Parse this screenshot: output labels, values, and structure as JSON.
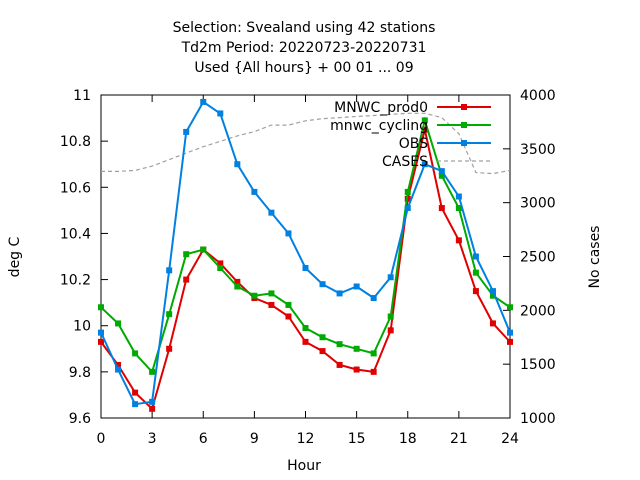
{
  "chart_data": {
    "type": "line",
    "title_lines": [
      "Selection: Svealand using    42 stations",
      "Td2m   Period: 20220723-20220731",
      "Used {All hours} + 00 01 ... 09"
    ],
    "xlabel": "Hour",
    "ylabel": "deg C",
    "y2label": "No cases",
    "xlim": [
      0,
      24
    ],
    "ylim": [
      9.6,
      11.0
    ],
    "y2lim": [
      1000,
      4000
    ],
    "xticks": [
      0,
      3,
      6,
      9,
      12,
      15,
      18,
      21,
      24
    ],
    "yticks": [
      9.6,
      9.8,
      10,
      10.2,
      10.4,
      10.6,
      10.8,
      11
    ],
    "ytick_labels": [
      "9.6",
      "9.8",
      "10",
      "10.2",
      "10.4",
      "10.6",
      "10.8",
      "11"
    ],
    "y2ticks": [
      1000,
      1500,
      2000,
      2500,
      3000,
      3500,
      4000
    ],
    "legend_position": "top-right",
    "x": [
      0,
      1,
      2,
      3,
      4,
      5,
      6,
      7,
      8,
      9,
      10,
      11,
      12,
      13,
      14,
      15,
      16,
      17,
      18,
      19,
      20,
      21,
      22,
      23,
      24
    ],
    "series": [
      {
        "name": "MNWC_prod0",
        "color": "#e00000",
        "marker": "square",
        "axis": "y1",
        "values": [
          9.93,
          9.83,
          9.71,
          9.64,
          9.9,
          10.2,
          10.33,
          10.27,
          10.19,
          10.12,
          10.09,
          10.04,
          9.93,
          9.89,
          9.83,
          9.81,
          9.8,
          9.98,
          10.55,
          10.85,
          10.51,
          10.37,
          10.15,
          10.01,
          9.93
        ]
      },
      {
        "name": "mnwc_cycling",
        "color": "#00aa00",
        "marker": "square",
        "axis": "y1",
        "values": [
          10.08,
          10.01,
          9.88,
          9.8,
          10.05,
          10.31,
          10.33,
          10.25,
          10.17,
          10.13,
          10.14,
          10.09,
          9.99,
          9.95,
          9.92,
          9.9,
          9.88,
          10.04,
          10.58,
          10.89,
          10.65,
          10.51,
          10.23,
          10.13,
          10.08
        ]
      },
      {
        "name": "OBS",
        "color": "#0080e0",
        "marker": "square",
        "axis": "y1",
        "values": [
          9.97,
          9.81,
          9.66,
          9.67,
          10.24,
          10.84,
          10.97,
          10.92,
          10.7,
          10.58,
          10.49,
          10.4,
          10.25,
          10.18,
          10.14,
          10.17,
          10.12,
          10.21,
          10.51,
          10.7,
          10.67,
          10.56,
          10.3,
          10.15,
          9.97
        ]
      },
      {
        "name": "CASES",
        "color": "#a0a0a0",
        "marker": "none",
        "dashed": true,
        "axis": "y2",
        "values": [
          3290,
          3290,
          3300,
          3340,
          3400,
          3460,
          3520,
          3570,
          3620,
          3660,
          3720,
          3720,
          3760,
          3780,
          3790,
          3800,
          3810,
          3820,
          3830,
          3830,
          3790,
          3640,
          3280,
          3270,
          3300
        ]
      }
    ]
  }
}
